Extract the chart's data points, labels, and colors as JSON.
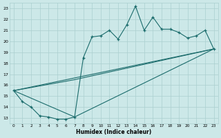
{
  "xlabel": "Humidex (Indice chaleur)",
  "bg_color": "#cce8e8",
  "line_color": "#1a6b6b",
  "grid_color": "#aacfcf",
  "xlim": [
    0,
    23
  ],
  "ylim": [
    13,
    23
  ],
  "yticks": [
    13,
    14,
    15,
    16,
    17,
    18,
    19,
    20,
    21,
    22,
    23
  ],
  "xticks": [
    0,
    1,
    2,
    3,
    4,
    5,
    6,
    7,
    8,
    9,
    10,
    11,
    12,
    13,
    14,
    15,
    16,
    17,
    18,
    19,
    20,
    21,
    22,
    23
  ],
  "main_x": [
    0,
    1,
    2,
    3,
    4,
    5,
    6,
    7,
    8,
    9,
    10,
    11,
    12,
    13,
    14,
    15,
    16,
    17,
    18,
    19,
    20,
    21,
    22,
    23
  ],
  "main_y": [
    15.5,
    14.5,
    14.0,
    13.2,
    13.1,
    12.9,
    12.9,
    13.1,
    18.5,
    20.4,
    20.5,
    21.0,
    20.2,
    21.5,
    23.2,
    21.0,
    22.2,
    21.1,
    21.1,
    20.8,
    20.3,
    20.5,
    21.0,
    19.3
  ],
  "line1_x": [
    0,
    23
  ],
  "line1_y": [
    15.5,
    19.3
  ],
  "line2_x": [
    0,
    7,
    23
  ],
  "line2_y": [
    15.5,
    13.1,
    19.3
  ],
  "line3_x": [
    0,
    7,
    23
  ],
  "line3_y": [
    15.5,
    16.5,
    19.3
  ]
}
